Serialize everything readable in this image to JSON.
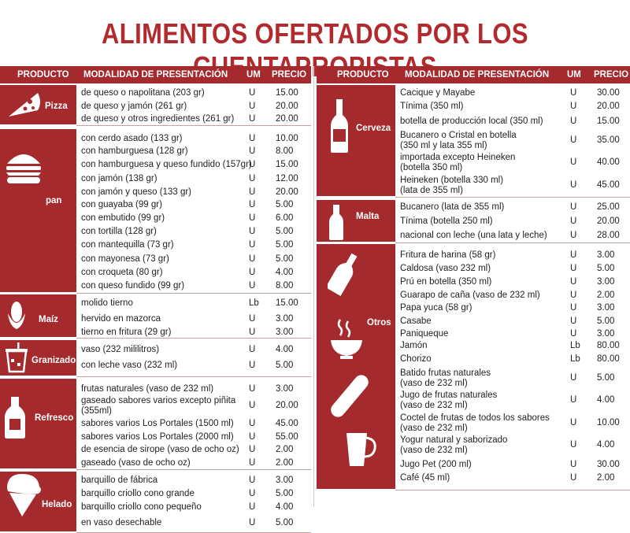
{
  "title": "ALIMENTOS OFERTADOS POR LOS CUENTAPROPISTAS",
  "headers": {
    "producto": "PRODUCTO",
    "modalidad": "MODALIDAD DE PRESENTACIÓN",
    "um": "UM",
    "precio": "PRECIO"
  },
  "colors": {
    "accent": "#a52a2e",
    "title": "#b22a2e"
  },
  "left": [
    {
      "name": "Pizza",
      "icon": "pizza-icon",
      "items": [
        {
          "desc": "de queso o napolitana (203 gr)",
          "um": "U",
          "price": "15.00"
        },
        {
          "desc": "de queso y jamón (261 gr)",
          "um": "U",
          "price": "20.00"
        },
        {
          "desc": "de queso y otros ingredientes (261 gr)",
          "um": "U",
          "price": "20.00"
        }
      ]
    },
    {
      "name": "pan",
      "icon": "burger-icon",
      "items": [
        {
          "desc": "con cerdo asado (133 gr)",
          "um": "U",
          "price": "10.00"
        },
        {
          "desc": "con hamburguesa (128 gr)",
          "um": "U",
          "price": "8.00"
        },
        {
          "desc": "con hamburguesa y queso fundido (157gr)",
          "um": "U",
          "price": "15.00"
        },
        {
          "desc": "con jamón (138 gr)",
          "um": "U",
          "price": "12.00"
        },
        {
          "desc": "con jamón y queso (133 gr)",
          "um": "U",
          "price": "20.00"
        },
        {
          "desc": "con guayaba (99 gr)",
          "um": "U",
          "price": "5.00"
        },
        {
          "desc": "con embutido (99 gr)",
          "um": "U",
          "price": "6.00"
        },
        {
          "desc": "con tortilla (128 gr)",
          "um": "U",
          "price": "5.00"
        },
        {
          "desc": "con mantequilla (73 gr)",
          "um": "U",
          "price": "5.00"
        },
        {
          "desc": "con mayonesa (73 gr)",
          "um": "U",
          "price": "5.00"
        },
        {
          "desc": "con croqueta (80 gr)",
          "um": "U",
          "price": "4.00"
        },
        {
          "desc": "con queso fundido (99 gr)",
          "um": "U",
          "price": "8.00"
        }
      ]
    },
    {
      "name": "Maíz",
      "icon": "corn-icon",
      "items": [
        {
          "desc": "molido tierno",
          "um": "Lb",
          "price": "15.00"
        },
        {
          "desc": "hervido en mazorca",
          "um": "U",
          "price": "3.00"
        },
        {
          "desc": "tierno en fritura (29 gr)",
          "um": "U",
          "price": "3.00"
        }
      ]
    },
    {
      "name": "Granizado",
      "icon": "slush-cup-icon",
      "items": [
        {
          "desc": "vaso (232 mililitros)",
          "um": "U",
          "price": "4.00"
        },
        {
          "desc": "con leche vaso (232 ml)",
          "um": "U",
          "price": "5.00"
        }
      ]
    },
    {
      "name": "Refresco",
      "icon": "soda-bottle-icon",
      "items": [
        {
          "desc": "frutas naturales (vaso de 232 ml)",
          "um": "U",
          "price": "3.00"
        },
        {
          "desc": "gaseado sabores varios excepto piñita",
          "desc2": "(355ml)",
          "um": "U",
          "price": "20.00"
        },
        {
          "desc": "sabores varios Los Portales (1500 ml)",
          "um": "U",
          "price": "45.00"
        },
        {
          "desc": "sabores varios Los Portales (2000 ml)",
          "um": "U",
          "price": "55.00"
        },
        {
          "desc": "de esencia de sirope (vaso de ocho oz)",
          "um": "U",
          "price": "2.00"
        },
        {
          "desc": "gaseado (vaso de ocho oz)",
          "um": "U",
          "price": "2.00"
        }
      ]
    },
    {
      "name": "Helado",
      "icon": "ice-cream-cone-icon",
      "items": [
        {
          "desc": "barquillo de fábrica",
          "um": "U",
          "price": "3.00"
        },
        {
          "desc": "barquillo criollo cono grande",
          "um": "U",
          "price": "5.00"
        },
        {
          "desc": "barquillo criollo cono pequeño",
          "um": "U",
          "price": "4.00"
        },
        {
          "desc": "en vaso desechable",
          "um": "U",
          "price": "5.00"
        }
      ]
    }
  ],
  "right": [
    {
      "name": "Cerveza",
      "icon": "beer-bottle-icon",
      "items": [
        {
          "desc": "Cacique y Mayabe",
          "um": "U",
          "price": "30.00"
        },
        {
          "desc": "Tínima (350 ml)",
          "um": "U",
          "price": "20.00"
        },
        {
          "desc": "botella de producción local (350 ml)",
          "um": "U",
          "price": "15.00"
        },
        {
          "desc": "Bucanero o Cristal en botella",
          "desc2": "(350 ml y lata 355 ml)",
          "um": "U",
          "price": "35.00"
        },
        {
          "desc": "importada excepto Heineken",
          "desc2": "(botella 350 ml)",
          "um": "U",
          "price": "40.00"
        },
        {
          "desc": "Heineken (botella 330 ml)",
          "desc2": "(lata de 355 ml)",
          "um": "U",
          "price": "45.00"
        }
      ]
    },
    {
      "name": "Malta",
      "icon": "malta-bottle-icon",
      "items": [
        {
          "desc": "Bucanero (lata de 355 ml)",
          "um": "U",
          "price": "25.00"
        },
        {
          "desc": "Tínima (botella 250 ml)",
          "um": "U",
          "price": "20.00"
        },
        {
          "desc": "nacional con leche (una lata y leche)",
          "um": "U",
          "price": "28.00"
        }
      ]
    },
    {
      "name": "Otros",
      "icon": "steaming-bowl-icon",
      "items": [
        {
          "desc": "Fritura de harina (58 gr)",
          "um": "U",
          "price": "3.00"
        },
        {
          "desc": "Caldosa (vaso 232 ml)",
          "um": "U",
          "price": "5.00"
        },
        {
          "desc": "Prú en botella (350 ml)",
          "um": "U",
          "price": "3.00"
        },
        {
          "desc": "Guarapo de caña (vaso de 232 ml)",
          "um": "U",
          "price": "2.00"
        },
        {
          "desc": "Papa yuca (58 gr)",
          "um": "U",
          "price": "3.00"
        },
        {
          "desc": "Casabe",
          "um": "U",
          "price": "5.00"
        },
        {
          "desc": "Paniqueque",
          "um": "U",
          "price": "3.00"
        },
        {
          "desc": "Jamón",
          "um": "Lb",
          "price": "80.00"
        },
        {
          "desc": "Chorizo",
          "um": "Lb",
          "price": "80.00"
        },
        {
          "desc": "Batido frutas naturales",
          "desc2": "(vaso de 232 ml)",
          "um": "U",
          "price": "5.00"
        },
        {
          "desc": "Jugo de frutas naturales",
          "desc2": "(vaso de 232 ml)",
          "um": "U",
          "price": "4.00"
        },
        {
          "desc": "Coctel de frutas de todos los sabores",
          "desc2": "(vaso de 232 ml)",
          "um": "U",
          "price": "10.00"
        },
        {
          "desc": "Yogur natural y saborizado",
          "desc2": "(vaso de 232 ml)",
          "um": "U",
          "price": "4.00"
        },
        {
          "desc": "Jugo Pet (200 ml)",
          "um": "U",
          "price": "30.00"
        },
        {
          "desc": "Café (45 ml)",
          "um": "U",
          "price": "2.00"
        }
      ]
    }
  ]
}
